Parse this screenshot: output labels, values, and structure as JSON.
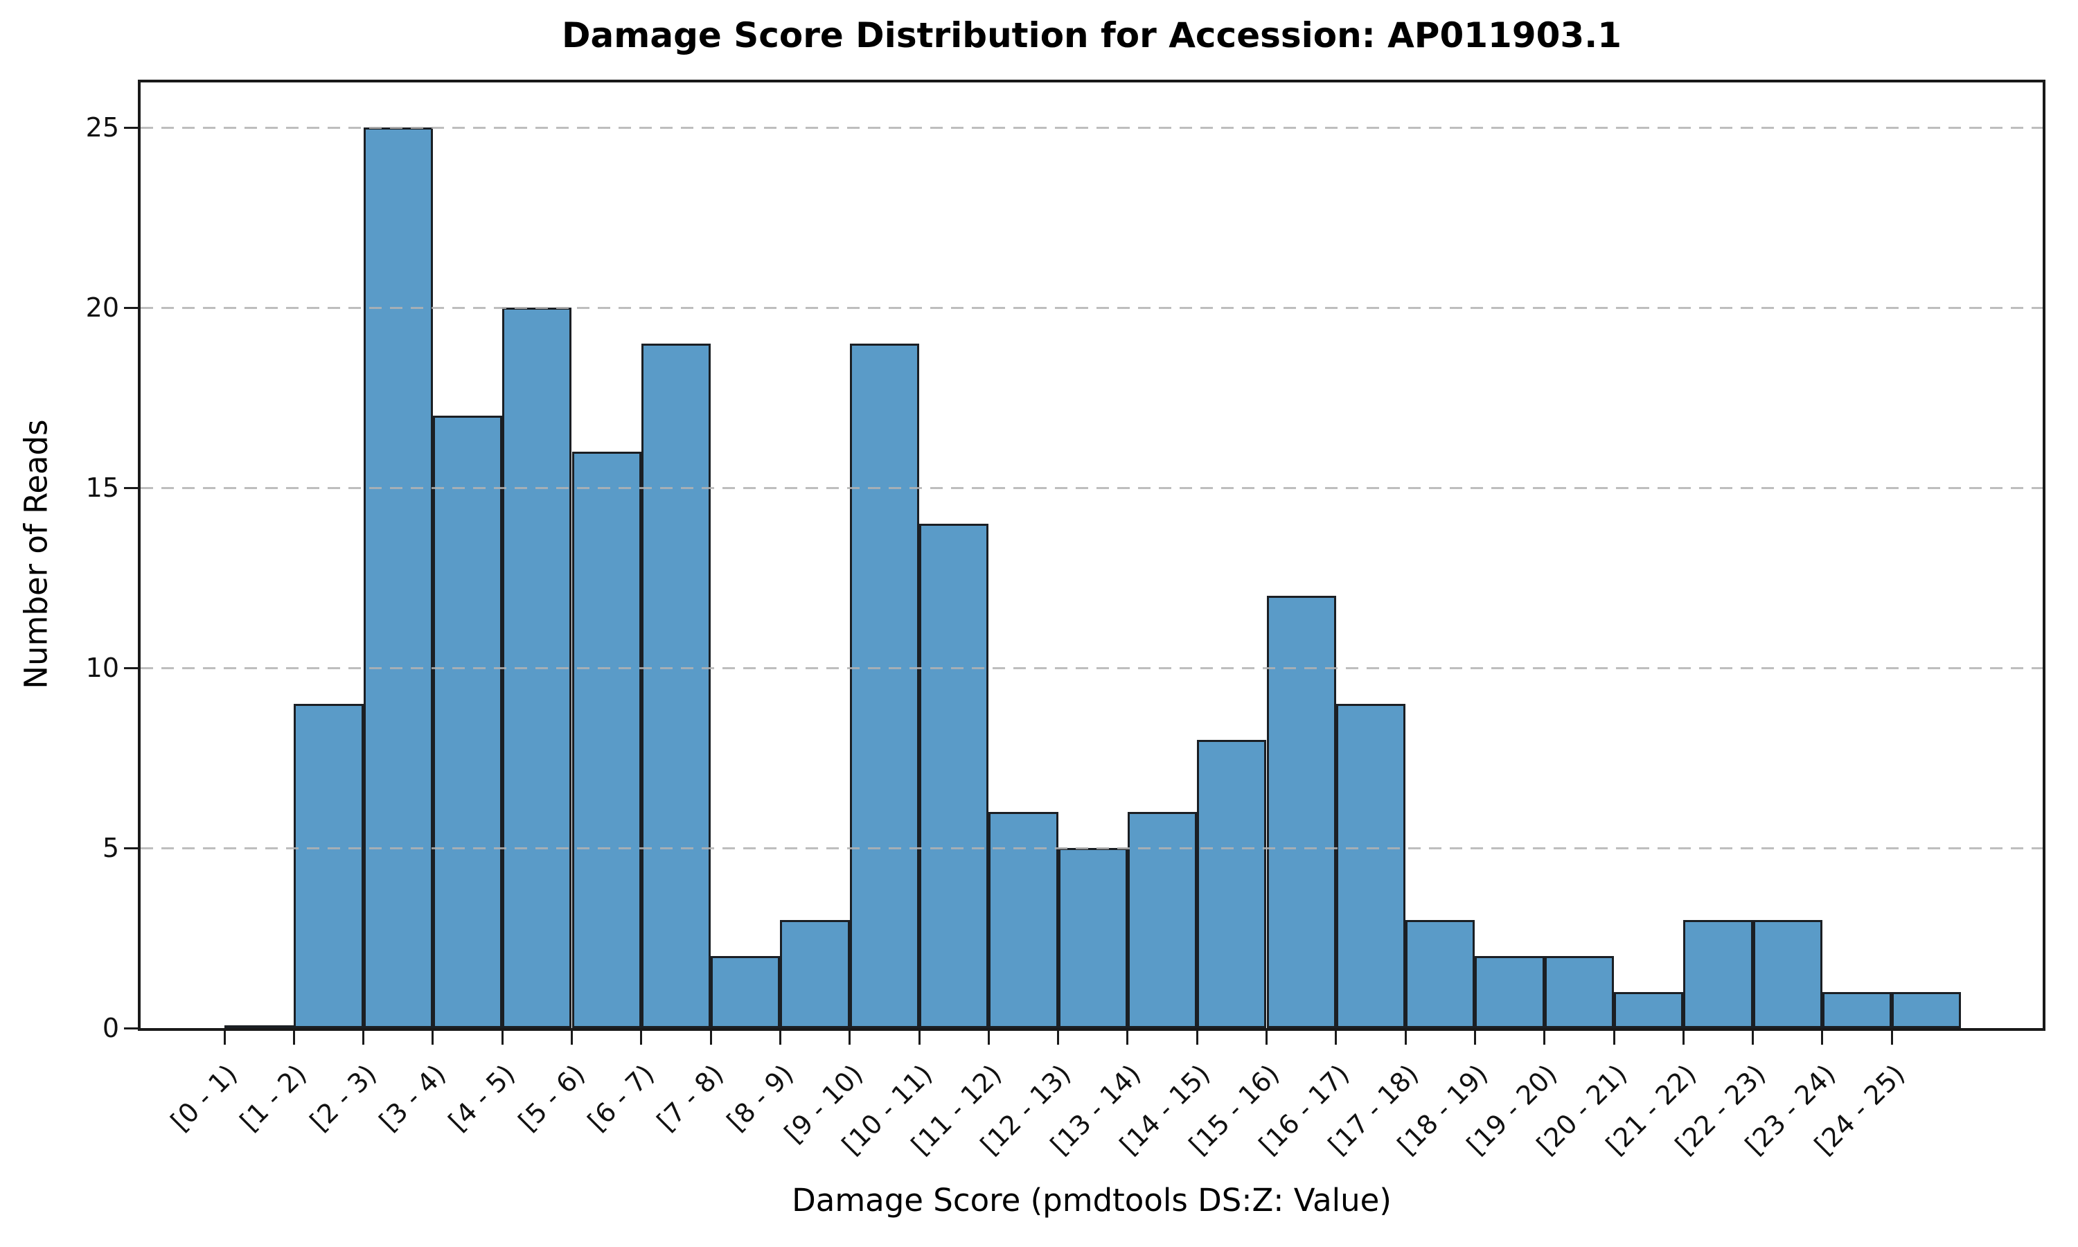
{
  "title": "Damage Score Distribution for Accession: AP011903.1",
  "x_axis": {
    "label": "Damage Score (pmdtools DS:Z: Value)"
  },
  "y_axis": {
    "label": "Number of Reads",
    "ticks": [
      0,
      5,
      10,
      15,
      20,
      25
    ]
  },
  "colors": {
    "bar_fill": "#5A9BC8",
    "bar_edge": "#1b1f24",
    "spine": "#1a1a1a",
    "grid": "#b2b2b2",
    "text": "#111111",
    "background": "#ffffff"
  },
  "chart_data": {
    "type": "bar",
    "title": "Damage Score Distribution for Accession: AP011903.1",
    "xlabel": "Damage Score (pmdtools DS:Z: Value)",
    "ylabel": "Number of Reads",
    "categories": [
      "[0 - 1)",
      "[1 - 2)",
      "[2 - 3)",
      "[3 - 4)",
      "[4 - 5)",
      "[5 - 6)",
      "[6 - 7)",
      "[7 - 8)",
      "[8 - 9)",
      "[9 - 10)",
      "[10 - 11)",
      "[11 - 12)",
      "[12 - 13)",
      "[13 - 14)",
      "[14 - 15)",
      "[15 - 16)",
      "[16 - 17)",
      "[17 - 18)",
      "[18 - 19)",
      "[19 - 20)",
      "[20 - 21)",
      "[21 - 22)",
      "[22 - 23)",
      "[23 - 24)",
      "[24 - 25)"
    ],
    "values": [
      0,
      9,
      25,
      17,
      20,
      16,
      19,
      2,
      3,
      19,
      14,
      6,
      5,
      6,
      8,
      12,
      9,
      3,
      2,
      2,
      1,
      3,
      3,
      1,
      1
    ],
    "ylim": [
      0,
      26.25
    ],
    "y_ticks": [
      0,
      5,
      10,
      15,
      20,
      25
    ],
    "grid": "horizontal dashed, drawn above bars",
    "legend": "none",
    "bin_alignment": "ticks mark left bin edges; labels rotated 45deg, right-anchored at ticks",
    "total_reads": 206
  }
}
